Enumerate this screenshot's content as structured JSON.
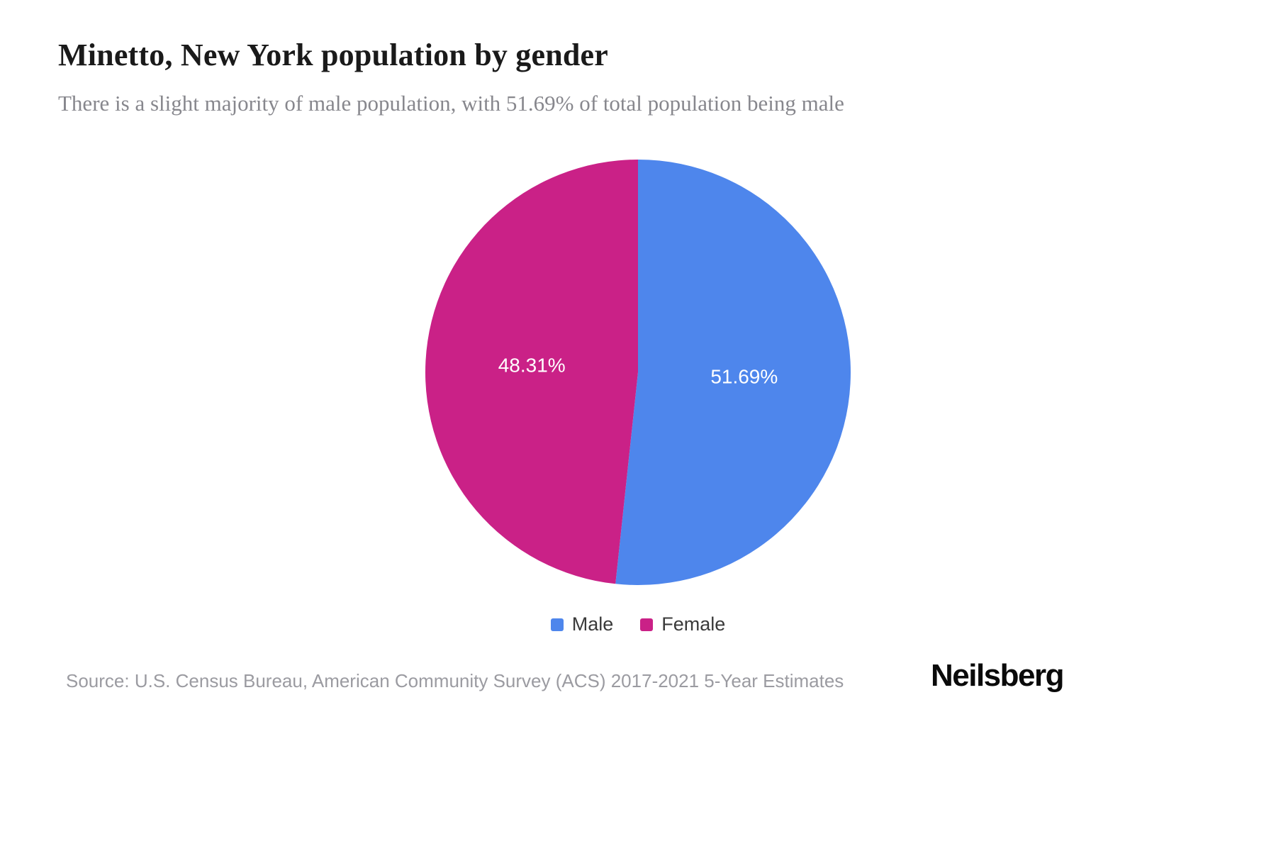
{
  "header": {
    "title": "Minetto, New York population by gender",
    "subtitle": "There is a slight majority of male population, with 51.69% of total population being male"
  },
  "chart_data": {
    "type": "pie",
    "title": "Minetto, New York population by gender",
    "series": [
      {
        "name": "Male",
        "value": 51.69,
        "label": "51.69%",
        "color": "#4e86ec"
      },
      {
        "name": "Female",
        "value": 48.31,
        "label": "48.31%",
        "color": "#ca2187"
      }
    ],
    "start_angle_deg": -90,
    "direction": "clockwise",
    "label_color": "#ffffff",
    "legend_position": "bottom",
    "legend_entries": [
      "Male",
      "Female"
    ]
  },
  "legend": {
    "items": [
      {
        "label": "Male",
        "color": "#4e86ec"
      },
      {
        "label": "Female",
        "color": "#ca2187"
      }
    ]
  },
  "footer": {
    "source": "Source: U.S. Census Bureau, American Community Survey (ACS) 2017-2021 5-Year Estimates",
    "brand": "Neilsberg"
  }
}
